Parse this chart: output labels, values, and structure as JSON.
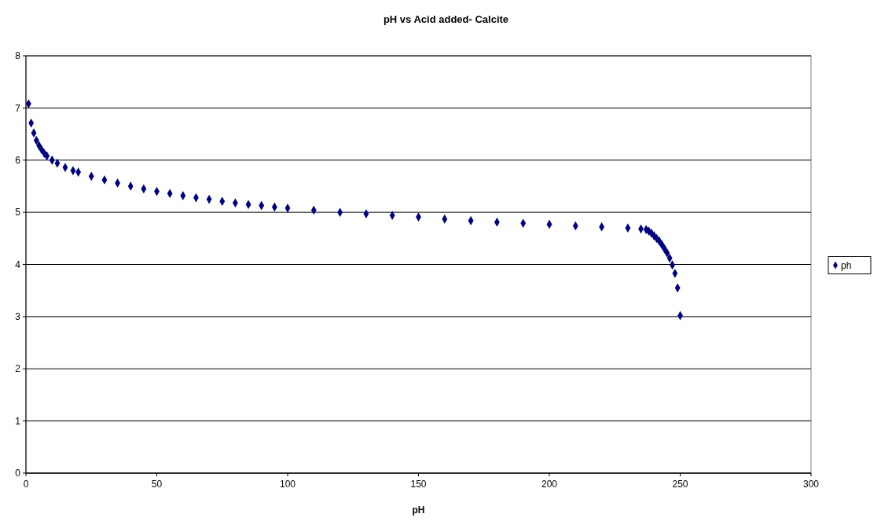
{
  "chart_data": {
    "type": "scatter",
    "title": "pH vs Acid added- Calcite",
    "xlabel": "pH",
    "x": [
      1,
      2,
      3,
      4,
      5,
      6,
      7,
      8,
      10,
      12,
      15,
      18,
      20,
      25,
      30,
      35,
      40,
      45,
      50,
      55,
      60,
      65,
      70,
      75,
      80,
      85,
      90,
      95,
      100,
      110,
      120,
      130,
      140,
      150,
      160,
      170,
      180,
      190,
      200,
      210,
      220,
      230,
      235,
      237,
      238,
      239,
      240,
      241,
      242,
      243,
      244,
      245,
      246,
      247,
      248,
      249,
      250
    ],
    "series": [
      {
        "name": "ph",
        "color": "#000080",
        "values": [
          7.08,
          6.71,
          6.52,
          6.38,
          6.28,
          6.2,
          6.13,
          6.08,
          6.0,
          5.94,
          5.86,
          5.8,
          5.77,
          5.69,
          5.62,
          5.56,
          5.5,
          5.45,
          5.4,
          5.36,
          5.32,
          5.28,
          5.25,
          5.21,
          5.18,
          5.15,
          5.13,
          5.1,
          5.08,
          5.04,
          5.0,
          4.97,
          4.94,
          4.91,
          4.87,
          4.84,
          4.81,
          4.79,
          4.77,
          4.74,
          4.72,
          4.7,
          4.68,
          4.67,
          4.64,
          4.6,
          4.55,
          4.5,
          4.45,
          4.38,
          4.3,
          4.22,
          4.12,
          3.99,
          3.83,
          3.55,
          3.02
        ]
      }
    ],
    "xlim": [
      0,
      300
    ],
    "xticks": [
      0,
      50,
      100,
      150,
      200,
      250,
      300
    ],
    "ylim": [
      0,
      8
    ],
    "yticks": [
      0,
      1,
      2,
      3,
      4,
      5,
      6,
      7,
      8
    ],
    "grid": "y",
    "legend": "right",
    "marker": "diamond"
  }
}
